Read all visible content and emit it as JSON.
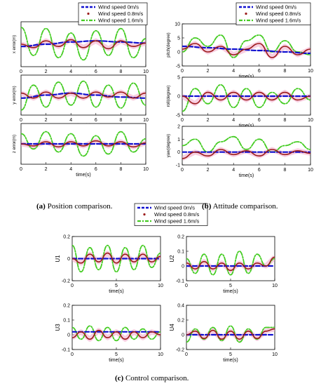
{
  "captions": {
    "a": {
      "tag": "(a)",
      "text": "Position comparison."
    },
    "b": {
      "tag": "(b)",
      "text": "Attitude comparison."
    },
    "c": {
      "tag": "(c)",
      "text": "Control comparison."
    }
  },
  "legend": {
    "entries": [
      "Wind speed 0m/s",
      "Wind speed 0.8m/s",
      "Wind speed 1.6m/s"
    ]
  },
  "colors": {
    "series0": "#1010d0",
    "series1": "#9b1b1b",
    "series2": "#44cc22",
    "band": "#f2a6c8"
  },
  "chart_data": [
    {
      "id": "x-error",
      "type": "line",
      "ylabel": "x error(m)",
      "xlabel": "time(s)",
      "xlim": [
        0,
        10
      ],
      "ylim": [
        -0.2,
        0.2
      ],
      "xticks": [
        0,
        2,
        4,
        6,
        8,
        10
      ],
      "yticks": [],
      "series": [
        {
          "name": "Wind speed 0m/s",
          "x": [
            0,
            2,
            4,
            6,
            8,
            10
          ],
          "y": [
            -0.02,
            0,
            0.02,
            0.03,
            0.02,
            0.01
          ]
        },
        {
          "name": "Wind speed 0.8m/s",
          "x": [
            0,
            1,
            2,
            3,
            4,
            5,
            6,
            7,
            8,
            9,
            10
          ],
          "y": [
            0,
            -0.03,
            0.03,
            -0.02,
            0.04,
            -0.03,
            0.03,
            -0.04,
            0.03,
            -0.02,
            0.01
          ]
        },
        {
          "name": "Wind speed 1.6m/s",
          "x": [
            0,
            1,
            2,
            3,
            4,
            5,
            6,
            7,
            8,
            9,
            10
          ],
          "y": [
            0.15,
            -0.1,
            0.14,
            -0.12,
            0.1,
            -0.14,
            0.12,
            -0.1,
            0.14,
            -0.12,
            0.05
          ]
        }
      ]
    },
    {
      "id": "y-error",
      "type": "line",
      "ylabel": "y error(m)",
      "xlabel": "time(s)",
      "xlim": [
        0,
        10
      ],
      "ylim": [
        -0.2,
        0.2
      ],
      "xticks": [
        0,
        2,
        4,
        6,
        8,
        10
      ],
      "yticks": [],
      "series": [
        {
          "name": "Wind speed 0m/s",
          "x": [
            0,
            2,
            4,
            6,
            8,
            10
          ],
          "y": [
            -0.03,
            0,
            0.02,
            0,
            -0.02,
            -0.03
          ]
        },
        {
          "name": "Wind speed 0.8m/s",
          "x": [
            0,
            1,
            2,
            3,
            4,
            5,
            6,
            7,
            8,
            9,
            10
          ],
          "y": [
            0.02,
            -0.03,
            0.03,
            -0.03,
            0.02,
            -0.03,
            0.03,
            -0.02,
            0.03,
            -0.03,
            0.02
          ]
        },
        {
          "name": "Wind speed 1.6m/s",
          "x": [
            0,
            1,
            2,
            3,
            4,
            5,
            6,
            7,
            8,
            9,
            10
          ],
          "y": [
            -0.15,
            0.1,
            -0.12,
            0.13,
            -0.1,
            0.14,
            -0.12,
            0.1,
            -0.13,
            0.12,
            -0.1
          ]
        }
      ]
    },
    {
      "id": "z-error",
      "type": "line",
      "ylabel": "z error(m)",
      "xlabel": "time(s)",
      "xlim": [
        0,
        10
      ],
      "ylim": [
        -0.2,
        0.2
      ],
      "xticks": [
        0,
        2,
        4,
        6,
        8,
        10
      ],
      "yticks": [],
      "series": [
        {
          "name": "Wind speed 0m/s",
          "x": [
            0,
            5,
            10
          ],
          "y": [
            0,
            0,
            0
          ]
        },
        {
          "name": "Wind speed 0.8m/s",
          "x": [
            0,
            1,
            2,
            3,
            4,
            5,
            6,
            7,
            8,
            9,
            10
          ],
          "y": [
            0,
            -0.02,
            0.02,
            -0.03,
            0.02,
            -0.02,
            0.03,
            -0.02,
            0.02,
            -0.03,
            0.01
          ]
        },
        {
          "name": "Wind speed 1.6m/s",
          "x": [
            0,
            1,
            2,
            3,
            4,
            5,
            6,
            7,
            8,
            9,
            10
          ],
          "y": [
            0.1,
            -0.05,
            0.12,
            -0.08,
            0.1,
            -0.12,
            0.08,
            -0.1,
            0.12,
            -0.08,
            0.05
          ]
        }
      ]
    },
    {
      "id": "pitch",
      "type": "line",
      "ylabel": "pitch(degree)",
      "xlabel": "time(s)",
      "xlim": [
        0,
        10
      ],
      "ylim": [
        -5,
        10
      ],
      "xticks": [
        0,
        2,
        4,
        6,
        8,
        10
      ],
      "yticks": [
        -5,
        0,
        5,
        10
      ],
      "series": [
        {
          "name": "Wind speed 0m/s",
          "x": [
            0,
            2,
            4,
            6,
            8,
            10
          ],
          "y": [
            2,
            1.5,
            1,
            0.5,
            0,
            -0.5
          ]
        },
        {
          "name": "Wind speed 0.8m/s",
          "x": [
            0,
            1,
            2,
            3,
            4,
            5,
            6,
            7,
            8,
            9,
            10
          ],
          "y": [
            1,
            3,
            0,
            2,
            -1,
            1,
            3,
            -2,
            2,
            -1,
            1
          ]
        },
        {
          "name": "Wind speed 1.6m/s",
          "x": [
            0,
            1,
            2,
            3,
            4,
            5,
            6,
            7,
            8,
            9,
            10
          ],
          "y": [
            0,
            5,
            2,
            6,
            -2,
            4,
            6,
            0,
            4,
            0,
            -1
          ]
        }
      ]
    },
    {
      "id": "roll",
      "type": "line",
      "ylabel": "roll(degree)",
      "xlabel": "time(s)",
      "xlim": [
        0,
        10
      ],
      "ylim": [
        -5,
        5
      ],
      "xticks": [
        0,
        2,
        4,
        6,
        8,
        10
      ],
      "yticks": [
        -5,
        0,
        5
      ],
      "series": [
        {
          "name": "Wind speed 0m/s",
          "x": [
            0,
            5,
            10
          ],
          "y": [
            0,
            0,
            0
          ]
        },
        {
          "name": "Wind speed 0.8m/s",
          "x": [
            0,
            1,
            2,
            3,
            4,
            5,
            6,
            7,
            8,
            9,
            10
          ],
          "y": [
            0,
            -2,
            1,
            -1,
            1,
            -1,
            1,
            -1,
            1,
            -1,
            0
          ]
        },
        {
          "name": "Wind speed 1.6m/s",
          "x": [
            0,
            1,
            2,
            3,
            4,
            5,
            6,
            7,
            8,
            9,
            10
          ],
          "y": [
            -4,
            2,
            -2,
            3,
            -3,
            2,
            -3,
            1,
            -2,
            2,
            -1
          ]
        }
      ]
    },
    {
      "id": "yaw",
      "type": "line",
      "ylabel": "yaw(degree)",
      "xlabel": "time(s)",
      "xlim": [
        0,
        10
      ],
      "ylim": [
        -1,
        2
      ],
      "xticks": [
        0,
        2,
        4,
        6,
        8,
        10
      ],
      "yticks": [
        -1,
        0,
        1,
        2
      ],
      "series": [
        {
          "name": "Wind speed 0m/s",
          "x": [
            0,
            5,
            10
          ],
          "y": [
            0,
            0,
            0
          ]
        },
        {
          "name": "Wind speed 0.8m/s",
          "x": [
            0,
            1,
            2,
            3,
            4,
            5,
            6,
            7,
            8,
            9,
            10
          ],
          "y": [
            -0.5,
            0,
            -0.3,
            0.2,
            -0.2,
            0.1,
            -0.3,
            0.2,
            -0.2,
            0.1,
            -0.1
          ]
        },
        {
          "name": "Wind speed 1.6m/s",
          "x": [
            0,
            1,
            2,
            3,
            4,
            5,
            6,
            7,
            8,
            9,
            10
          ],
          "y": [
            0.5,
            1,
            0,
            0.8,
            1.2,
            0.2,
            1,
            0,
            0.5,
            0.8,
            0.2
          ]
        }
      ]
    },
    {
      "id": "u1",
      "type": "line",
      "ylabel": "U1",
      "xlabel": "time(s)",
      "xlim": [
        0,
        10
      ],
      "ylim": [
        -0.2,
        0.2
      ],
      "xticks": [
        0,
        5,
        10
      ],
      "yticks": [
        -0.2,
        0,
        0.2
      ],
      "series": [
        {
          "name": "Wind speed 0m/s",
          "x": [
            0,
            5,
            10
          ],
          "y": [
            0,
            0,
            0
          ]
        },
        {
          "name": "Wind speed 0.8m/s",
          "x": [
            0,
            1,
            2,
            3,
            4,
            5,
            6,
            7,
            8,
            9,
            10
          ],
          "y": [
            0,
            -0.04,
            0.04,
            -0.03,
            0.05,
            -0.04,
            0.04,
            -0.03,
            0.04,
            -0.03,
            0.02
          ]
        },
        {
          "name": "Wind speed 1.6m/s",
          "x": [
            0,
            1,
            2,
            3,
            4,
            5,
            6,
            7,
            8,
            9,
            10
          ],
          "y": [
            0.12,
            -0.12,
            0.1,
            -0.1,
            0.12,
            -0.12,
            0.1,
            -0.1,
            0.12,
            -0.08,
            0.05
          ]
        }
      ]
    },
    {
      "id": "u2",
      "type": "line",
      "ylabel": "U2",
      "xlabel": "time(s)",
      "xlim": [
        0,
        10
      ],
      "ylim": [
        -0.1,
        0.2
      ],
      "xticks": [
        0,
        5,
        10
      ],
      "yticks": [
        -0.1,
        0,
        0.1,
        0.2
      ],
      "series": [
        {
          "name": "Wind speed 0m/s",
          "x": [
            0,
            5,
            10
          ],
          "y": [
            0,
            0,
            0
          ]
        },
        {
          "name": "Wind speed 0.8m/s",
          "x": [
            0,
            1,
            2,
            3,
            4,
            5,
            6,
            7,
            8,
            9,
            10
          ],
          "y": [
            0.02,
            -0.02,
            0.03,
            -0.02,
            0.02,
            -0.03,
            0.02,
            -0.02,
            0.02,
            0,
            0.06
          ]
        },
        {
          "name": "Wind speed 1.6m/s",
          "x": [
            0,
            1,
            2,
            3,
            4,
            5,
            6,
            7,
            8,
            9,
            10
          ],
          "y": [
            0.05,
            -0.05,
            0.08,
            -0.06,
            0.08,
            -0.06,
            0.1,
            -0.05,
            0.08,
            0,
            0.05
          ]
        }
      ]
    },
    {
      "id": "u3",
      "type": "line",
      "ylabel": "U3",
      "xlabel": "time(s)",
      "xlim": [
        0,
        10
      ],
      "ylim": [
        -0.1,
        0.2
      ],
      "xticks": [
        0,
        5,
        10
      ],
      "yticks": [
        -0.1,
        0,
        0.1,
        0.2
      ],
      "series": [
        {
          "name": "Wind speed 0m/s",
          "x": [
            0,
            5,
            10
          ],
          "y": [
            0.02,
            0.02,
            0.02
          ]
        },
        {
          "name": "Wind speed 0.8m/s",
          "x": [
            0,
            1,
            2,
            3,
            4,
            5,
            6,
            7,
            8,
            9,
            10
          ],
          "y": [
            -0.02,
            0.02,
            -0.03,
            0.03,
            -0.02,
            0.02,
            -0.03,
            0.02,
            -0.02,
            0.02,
            0
          ]
        },
        {
          "name": "Wind speed 1.6m/s",
          "x": [
            0,
            1,
            2,
            3,
            4,
            5,
            6,
            7,
            8,
            9,
            10
          ],
          "y": [
            0.05,
            -0.03,
            0.06,
            -0.04,
            0.05,
            -0.04,
            0.05,
            -0.03,
            0.04,
            -0.03,
            0.02
          ]
        }
      ]
    },
    {
      "id": "u4",
      "type": "line",
      "ylabel": "U4",
      "xlabel": "time(s)",
      "xlim": [
        0,
        10
      ],
      "ylim": [
        -0.2,
        0.4
      ],
      "xticks": [
        0,
        5,
        10
      ],
      "yticks": [
        -0.2,
        0,
        0.2,
        0.4
      ],
      "series": [
        {
          "name": "Wind speed 0m/s",
          "x": [
            0,
            5,
            10
          ],
          "y": [
            0,
            0,
            0
          ]
        },
        {
          "name": "Wind speed 0.8m/s",
          "x": [
            0,
            1,
            2,
            3,
            4,
            5,
            6,
            7,
            8,
            9,
            10
          ],
          "y": [
            0,
            0.05,
            -0.05,
            0.06,
            -0.06,
            0.05,
            -0.06,
            0.05,
            -0.05,
            0.05,
            0.08
          ]
        },
        {
          "name": "Wind speed 1.6m/s",
          "x": [
            0,
            1,
            2,
            3,
            4,
            5,
            6,
            7,
            8,
            9,
            10
          ],
          "y": [
            -0.1,
            0.08,
            -0.06,
            0.1,
            -0.08,
            0.12,
            -0.1,
            0.08,
            -0.06,
            0.1,
            0.1
          ]
        }
      ]
    }
  ]
}
